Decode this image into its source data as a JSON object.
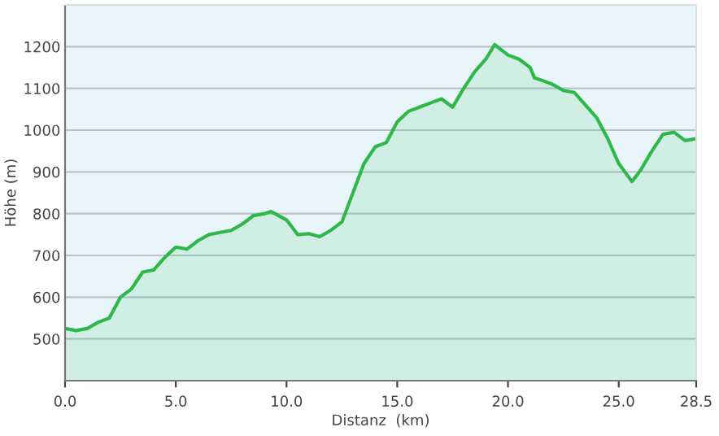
{
  "chart_data": {
    "type": "area",
    "xlabel": "Distanz  (km)",
    "ylabel": "Höhe (m)",
    "x": [
      0,
      0.5,
      1,
      1.5,
      2,
      2.5,
      3,
      3.5,
      4,
      4.5,
      5,
      5.5,
      6,
      6.5,
      7,
      7.5,
      8,
      8.5,
      9,
      9.3,
      10,
      10.5,
      11,
      11.5,
      12,
      12.5,
      13,
      13.5,
      14,
      14.5,
      15,
      15.5,
      16,
      16.5,
      17,
      17.5,
      18,
      18.5,
      19,
      19.4,
      20,
      20.5,
      21,
      21.2,
      21.5,
      22,
      22.5,
      23,
      23.5,
      24,
      24.5,
      25,
      25.6,
      26,
      26.5,
      27,
      27.5,
      28,
      28.5
    ],
    "series": [
      {
        "color": "#2eb84a",
        "values": [
          525,
          520,
          525,
          540,
          550,
          600,
          620,
          660,
          665,
          695,
          720,
          715,
          735,
          750,
          755,
          760,
          775,
          795,
          800,
          805,
          785,
          750,
          752,
          745,
          760,
          780,
          850,
          920,
          960,
          970,
          1020,
          1045,
          1055,
          1065,
          1075,
          1055,
          1100,
          1140,
          1170,
          1205,
          1180,
          1170,
          1150,
          1125,
          1120,
          1110,
          1095,
          1090,
          1060,
          1030,
          980,
          920,
          877,
          905,
          950,
          990,
          995,
          975,
          980
        ]
      }
    ],
    "xlim": [
      0,
      28.5
    ],
    "xticks": [
      {
        "value": 0,
        "label": "0.0"
      },
      {
        "value": 5,
        "label": "5.0"
      },
      {
        "value": 10,
        "label": "10.0"
      },
      {
        "value": 15,
        "label": "15.0"
      },
      {
        "value": 20,
        "label": "20.0"
      },
      {
        "value": 25,
        "label": "25.0"
      },
      28.5
    ],
    "ylim": [
      400,
      1300
    ],
    "yticks": [
      {
        "value": 400,
        "label": null
      },
      500,
      600,
      700,
      800,
      900,
      1000,
      1100,
      1200
    ],
    "grid": "y",
    "legend": false
  }
}
